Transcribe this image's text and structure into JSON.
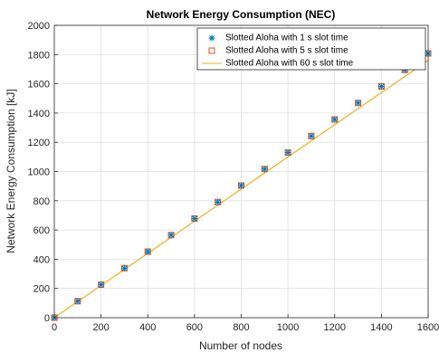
{
  "chart_data": {
    "type": "line",
    "title": "Network Energy Consumption (NEC)",
    "xlabel": "Number of nodes",
    "ylabel": "Network Energy Consumption [kJ]",
    "xlim": [
      0,
      1600
    ],
    "ylim": [
      0,
      2000
    ],
    "xticks": [
      0,
      200,
      400,
      600,
      800,
      1000,
      1200,
      1400,
      1600
    ],
    "yticks": [
      0,
      200,
      400,
      600,
      800,
      1000,
      1200,
      1400,
      1600,
      1800,
      2000
    ],
    "grid": true,
    "legend_position": "top-right",
    "x": [
      0,
      100,
      200,
      300,
      400,
      500,
      600,
      700,
      800,
      900,
      1000,
      1100,
      1200,
      1300,
      1400,
      1500,
      1600
    ],
    "series": [
      {
        "name": "Slotted Aloha with 1 s slot time",
        "marker": "asterisk",
        "color": "#0072BD",
        "values": [
          0,
          113,
          226,
          339,
          452,
          565,
          678,
          791,
          904,
          1017,
          1130,
          1243,
          1356,
          1469,
          1582,
          1695,
          1808
        ]
      },
      {
        "name": "Slotted Aloha with 5 s slot time",
        "marker": "square",
        "color": "#D95319",
        "values": [
          0,
          113,
          226,
          339,
          452,
          565,
          678,
          791,
          904,
          1017,
          1130,
          1243,
          1356,
          1469,
          1582,
          1695,
          1808
        ]
      },
      {
        "name": "Slotted Aloha with 60 s slot time",
        "marker": "line",
        "color": "#EDB120",
        "x": [
          0,
          1600
        ],
        "values": [
          0,
          1760
        ]
      }
    ]
  }
}
